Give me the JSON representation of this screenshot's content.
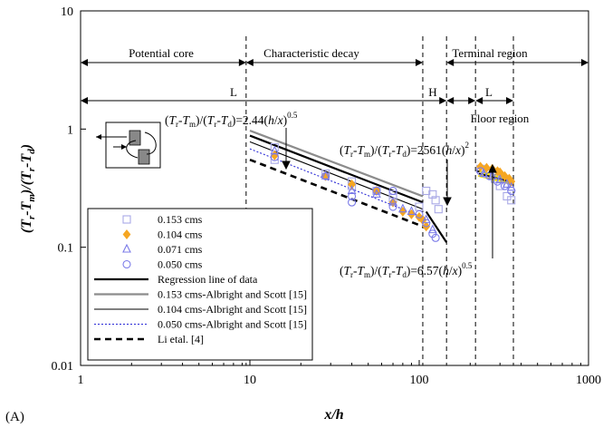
{
  "chart_data": {
    "type": "scatter",
    "xscale": "log",
    "yscale": "log",
    "xlim": [
      1,
      1000
    ],
    "ylim": [
      0.01,
      10
    ],
    "xticks": [
      "1",
      "10",
      "100",
      "1000"
    ],
    "yticks": [
      "0.01",
      "0.1",
      "1",
      "10"
    ],
    "xlabel": "x/h",
    "ylabel": "(Tr-Tm)/(Tr-Td)",
    "panel_label": "(A)",
    "grid": false,
    "legend_position": "lower-left",
    "regions": {
      "potential_core": "Potential core",
      "characteristic_decay": "Characteristic decay",
      "terminal_region": "Terminal region",
      "floor_region": "Floor region",
      "mark_L1": "L",
      "mark_H": "H",
      "mark_L2": "L"
    },
    "region_boundaries_x": [
      9.5,
      105,
      145,
      215,
      360
    ],
    "equations": {
      "eq1": "(Tr-Tm)/(Tr-Td)=2.44(h/x)^0.5",
      "eq2": "(Tr-Tm)/(Tr-Td)=2561(h/x)^2",
      "eq3": "(Tr-Tm)/(Tr-Td)=6.57(h/x)^0.5"
    },
    "series": [
      {
        "name": "0.153 cms",
        "marker": "square",
        "color": "#a9a9e6",
        "x": [
          14,
          14,
          28,
          40,
          40,
          56,
          70,
          70,
          100,
          110,
          120,
          125,
          130,
          230,
          250,
          280,
          300,
          330,
          350
        ],
        "y": [
          0.7,
          0.55,
          0.42,
          0.36,
          0.33,
          0.3,
          0.28,
          0.26,
          0.22,
          0.3,
          0.28,
          0.25,
          0.21,
          0.46,
          0.42,
          0.38,
          0.33,
          0.27,
          0.25
        ]
      },
      {
        "name": "0.104 cms",
        "marker": "diamond",
        "color": "#f5a623",
        "x": [
          14,
          28,
          40,
          56,
          70,
          80,
          90,
          100,
          105,
          110,
          230,
          250,
          270,
          290,
          300,
          320,
          340,
          350
        ],
        "y": [
          0.6,
          0.4,
          0.34,
          0.3,
          0.24,
          0.2,
          0.19,
          0.18,
          0.17,
          0.15,
          0.48,
          0.47,
          0.46,
          0.44,
          0.43,
          0.4,
          0.38,
          0.36
        ]
      },
      {
        "name": "0.071 cms",
        "marker": "triangle",
        "color": "#7b7be8",
        "x": [
          14,
          28,
          40,
          56,
          70,
          80,
          90,
          110,
          120,
          240,
          270,
          300,
          330,
          350
        ],
        "y": [
          0.65,
          0.4,
          0.3,
          0.28,
          0.24,
          0.21,
          0.2,
          0.17,
          0.14,
          0.42,
          0.4,
          0.37,
          0.34,
          0.32
        ]
      },
      {
        "name": "0.050 cms",
        "marker": "circle",
        "color": "#7b7be8",
        "x": [
          14,
          28,
          40,
          40,
          56,
          70,
          70,
          100,
          110,
          120,
          125,
          230,
          260,
          290,
          320,
          350
        ],
        "y": [
          0.58,
          0.4,
          0.27,
          0.24,
          0.3,
          0.3,
          0.22,
          0.19,
          0.16,
          0.13,
          0.12,
          0.44,
          0.4,
          0.36,
          0.33,
          0.3
        ]
      }
    ],
    "lines": [
      {
        "name": "Regression line of data",
        "color": "#000000",
        "width": 2.2,
        "dash": "",
        "segments": [
          [
            [
              10,
              0.88
            ],
            [
              105,
              0.24
            ]
          ],
          [
            [
              110,
              0.2
            ],
            [
              145,
              0.11
            ]
          ],
          [
            [
              220,
              0.44
            ],
            [
              350,
              0.38
            ]
          ]
        ]
      },
      {
        "name": "0.153 cms-Albright and Scott [15]",
        "color": "#8c8c8c",
        "width": 2.2,
        "dash": "",
        "segments": [
          [
            [
              10,
              0.97
            ],
            [
              105,
              0.27
            ]
          ]
        ]
      },
      {
        "name": "0.104 cms-Albright and Scott [15]",
        "color": "#000000",
        "width": 1.1,
        "dash": "",
        "segments": [
          [
            [
              10,
              0.78
            ],
            [
              105,
              0.21
            ]
          ]
        ]
      },
      {
        "name": "0.050 cms-Albright and Scott [15]",
        "color": "#2b2bd6",
        "width": 1.1,
        "dash": "2,2",
        "segments": [
          [
            [
              10,
              0.68
            ],
            [
              105,
              0.18
            ]
          ]
        ]
      },
      {
        "name": "Li etal. [4]",
        "color": "#000000",
        "width": 2.6,
        "dash": "7,5",
        "segments": [
          [
            [
              10,
              0.55
            ],
            [
              105,
              0.15
            ]
          ]
        ]
      }
    ],
    "floor_fit": {
      "color": "#ffe800",
      "x": [
        225,
        345
      ],
      "y": [
        0.42,
        0.36
      ]
    }
  }
}
